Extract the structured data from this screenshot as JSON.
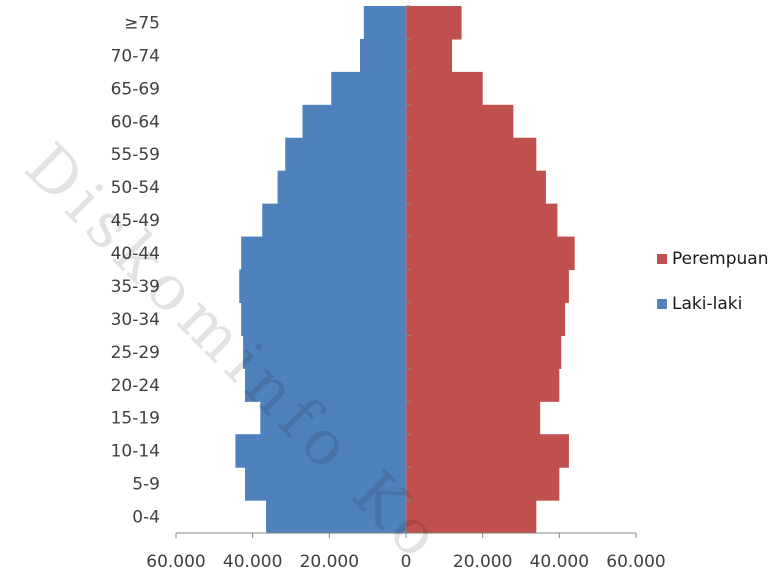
{
  "chart_data": {
    "type": "bar",
    "orientation": "horizontal",
    "subtype": "population-pyramid",
    "categories": [
      "0-4",
      "5-9",
      "10-14",
      "15-19",
      "20-24",
      "25-29",
      "30-34",
      "35-39",
      "40-44",
      "45-49",
      "50-54",
      "55-59",
      "60-64",
      "65-69",
      "70-74",
      "≥75"
    ],
    "series": [
      {
        "name": "Laki-laki",
        "color": "#4f81bd",
        "side": "left",
        "values": [
          36500,
          42000,
          44500,
          38000,
          42000,
          42500,
          43000,
          43500,
          43000,
          37500,
          33500,
          31500,
          27000,
          19500,
          12000,
          11000
        ]
      },
      {
        "name": "Perempuan",
        "color": "#c0504d",
        "side": "right",
        "values": [
          34000,
          40000,
          42500,
          35000,
          40000,
          40500,
          41500,
          42500,
          44000,
          39500,
          36500,
          34000,
          28000,
          20000,
          12000,
          14500
        ]
      }
    ],
    "xlim": [
      -60000,
      60000
    ],
    "x_ticks": [
      "60.000",
      "40.000",
      "20.000",
      "0",
      "20.000",
      "40.000",
      "60.000"
    ],
    "legend_position": "right",
    "legend_order": [
      "Perempuan",
      "Laki-laki"
    ],
    "grid": false,
    "title": "",
    "xlabel": "",
    "ylabel": ""
  },
  "watermark": {
    "text": "Diskominfo Ko"
  }
}
